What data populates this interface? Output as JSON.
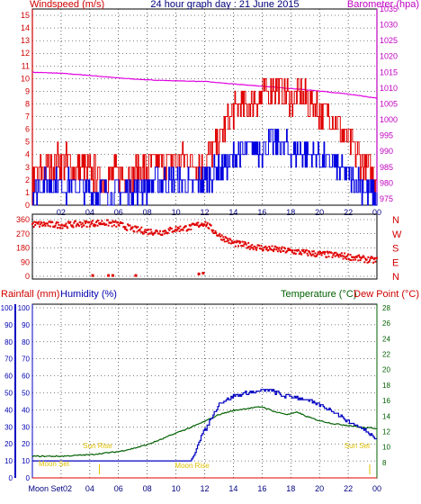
{
  "chart_data": [
    {
      "type": "line",
      "title": "24 hour graph day : 21 June 2015",
      "left_axis_label": "Windspeed (m/s)",
      "right_axis_label": "Barometer (hpa)",
      "x_ticks": [
        "02",
        "04",
        "06",
        "08",
        "10",
        "12",
        "14",
        "16",
        "18",
        "20",
        "22",
        "00"
      ],
      "left_ticks": [
        0,
        1,
        2,
        3,
        4,
        5,
        6,
        7,
        8,
        9,
        10,
        11,
        12,
        13,
        14,
        15
      ],
      "right_ticks": [
        975,
        980,
        985,
        990,
        995,
        1000,
        1005,
        1010,
        1015,
        1020,
        1025,
        1030,
        1035
      ],
      "ylim_left": [
        0,
        15.5
      ],
      "ylim_right": [
        973,
        1035
      ],
      "series": [
        {
          "role": "barometer",
          "color": "#e000e0",
          "unit": "hpa",
          "x": [
            0,
            2,
            4,
            6,
            8,
            10,
            12,
            14,
            16,
            18,
            20,
            22,
            24
          ],
          "values": [
            1015,
            1014.7,
            1014.0,
            1013.2,
            1012.6,
            1012.3,
            1012.1,
            1011.3,
            1010.6,
            1009.9,
            1009.1,
            1008.1,
            1006.8
          ]
        },
        {
          "role": "gust",
          "color": "#e00000",
          "unit": "m/s",
          "x": [
            0,
            1,
            2,
            3,
            4,
            5,
            6,
            7,
            8,
            9,
            10,
            11,
            12,
            13,
            14,
            15,
            16,
            17,
            18,
            19,
            20,
            21,
            22,
            23,
            24
          ],
          "values": [
            2,
            3,
            3.5,
            3,
            2.5,
            2.2,
            2.5,
            2.5,
            3,
            3.5,
            3.5,
            3.5,
            3.5,
            5,
            7.5,
            8,
            8.5,
            9.5,
            8.5,
            8.5,
            7.5,
            6.8,
            5,
            3.5,
            2
          ]
        },
        {
          "role": "average",
          "color": "#0000e0",
          "unit": "m/s",
          "x": [
            0,
            1,
            2,
            3,
            4,
            5,
            6,
            7,
            8,
            9,
            10,
            11,
            12,
            13,
            14,
            15,
            16,
            17,
            18,
            19,
            20,
            21,
            22,
            23,
            24
          ],
          "values": [
            1,
            2,
            1.5,
            1.5,
            1,
            1.2,
            1,
            1.2,
            1.5,
            2,
            1.8,
            1.5,
            2,
            2.8,
            3.8,
            4.5,
            4.5,
            5,
            4.3,
            4.3,
            3.7,
            3.2,
            2.2,
            1.5,
            0.6
          ]
        }
      ]
    },
    {
      "type": "scatter",
      "right_labels": [
        "N",
        "W",
        "S",
        "E",
        "N"
      ],
      "left_ticks": [
        360,
        270,
        180,
        90,
        0
      ],
      "ylim": [
        0,
        360
      ],
      "series": [
        {
          "role": "wind_direction",
          "color": "#e00000",
          "x": [
            0,
            1,
            2,
            3,
            4,
            5,
            6,
            7,
            8,
            9,
            10,
            11,
            12,
            13,
            14,
            15,
            16,
            17,
            18,
            19,
            20,
            21,
            22,
            23,
            24
          ],
          "values": [
            330,
            330,
            325,
            330,
            335,
            340,
            330,
            300,
            285,
            280,
            300,
            310,
            340,
            260,
            210,
            195,
            180,
            170,
            160,
            150,
            140,
            135,
            125,
            110,
            100
          ],
          "outliers_x": [
            4.2,
            5.3,
            5.6,
            7.2,
            11.6,
            11.9
          ],
          "outliers_values": [
            5,
            5,
            5,
            5,
            15,
            20
          ]
        }
      ]
    },
    {
      "type": "line",
      "left_axis_label": "Rainfall (mm)",
      "left_axis_label2": "Humidity (%)",
      "right_axis_label": "Temperature (°C)",
      "right_axis_label2": "Dew Point (°C)",
      "x_ticks": [
        "02",
        "04",
        "06",
        "08",
        "10",
        "12",
        "14",
        "16",
        "18",
        "20",
        "22",
        "00"
      ],
      "outer_ticks": [
        0,
        10,
        20,
        30,
        40,
        50,
        60,
        70,
        80,
        90,
        100
      ],
      "inner_ticks": [
        0,
        10,
        20,
        30,
        40,
        50,
        60,
        70,
        80,
        90,
        100
      ],
      "right_ticks": [
        8,
        10,
        12,
        14,
        16,
        18,
        20,
        22,
        24,
        26,
        28
      ],
      "ylim_left": [
        0,
        100
      ],
      "ylim_right": [
        6,
        28
      ],
      "annotations": {
        "sun_rise": "Sun Rise",
        "sun_rise_x": 4.67,
        "sun_set": "Sun Set",
        "sun_set_x": 23.5,
        "moon_rise": "Moon Rise",
        "moon_rise_x": 11.0,
        "moon_set_top": "Moon Set",
        "moon_set_top_x": 0.5,
        "moon_set_bottom": "Moon Set02",
        "moon_set_bottom_x": 0.8
      },
      "series": [
        {
          "role": "humidity",
          "color": "#0000c0",
          "unit": "%",
          "x": [
            0,
            2,
            4,
            6,
            8,
            10,
            11,
            11.3,
            11.6,
            12,
            12.5,
            13,
            14,
            15,
            16,
            16.5,
            17,
            17.5,
            18,
            19,
            20,
            21,
            22,
            23,
            24
          ],
          "values": [
            10,
            10,
            10,
            10,
            10,
            10,
            10,
            14,
            22,
            28,
            36,
            44,
            48,
            50,
            51,
            52,
            50,
            48,
            48,
            46,
            43,
            39,
            33,
            29,
            23
          ]
        },
        {
          "role": "temperature",
          "color": "#006000",
          "unit": "°C",
          "x": [
            0,
            1,
            2,
            3,
            4,
            5,
            6,
            7,
            8,
            9,
            10,
            11,
            12,
            13,
            14,
            15,
            16,
            17,
            17.8,
            18.5,
            19,
            20,
            21,
            22,
            23,
            24
          ],
          "values": [
            8.8,
            8.8,
            8.8,
            8.9,
            9.0,
            9.2,
            9.4,
            9.8,
            10.3,
            11.0,
            11.8,
            12.5,
            13.3,
            14.2,
            14.7,
            15.0,
            15.2,
            14.5,
            14.2,
            14.5,
            14.0,
            13.4,
            13.0,
            12.8,
            12.5,
            12.4
          ]
        },
        {
          "role": "rainfall",
          "color": "#e00000",
          "unit": "mm",
          "x": [
            0,
            24
          ],
          "values": [
            0,
            0
          ]
        }
      ]
    }
  ]
}
